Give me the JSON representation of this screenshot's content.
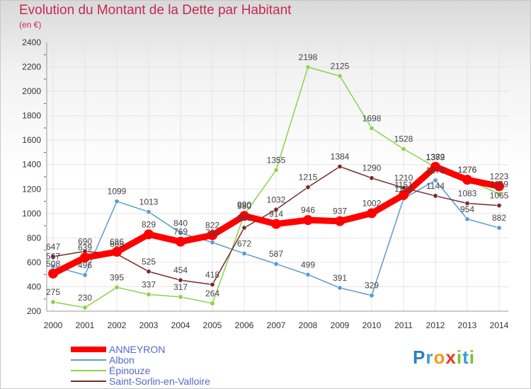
{
  "title": "Evolution du Montant de la Dette par Habitant",
  "subtitle": "(en €)",
  "logo": "Proxiti",
  "chart_data": {
    "type": "line",
    "x": [
      2000,
      2001,
      2002,
      2003,
      2004,
      2005,
      2006,
      2007,
      2008,
      2009,
      2010,
      2011,
      2012,
      2013,
      2014
    ],
    "ylim": [
      200,
      2400
    ],
    "yticks": [
      200,
      400,
      600,
      800,
      1000,
      1200,
      1400,
      1600,
      1800,
      2000,
      2200,
      2400
    ],
    "grid": true,
    "legend_position": "bottom-left",
    "series": [
      {
        "name": "ANNEYRON",
        "color": "#ff0000",
        "values": [
          508,
          639,
          686,
          829,
          769,
          822,
          980,
          914,
          946,
          937,
          1002,
          1151,
          1382,
          1276,
          1223
        ]
      },
      {
        "name": "Albon",
        "color": "#5b9bd5",
        "values": [
          567,
          496,
          1099,
          1013,
          840,
          763,
          672,
          587,
          499,
          391,
          329,
          1121,
          1271,
          954,
          882
        ]
      },
      {
        "name": "Épinouze",
        "color": "#8dd24a",
        "values": [
          275,
          230,
          395,
          337,
          317,
          264,
          990,
          1355,
          2198,
          2125,
          1698,
          1528,
          1379,
          1276,
          1159
        ]
      },
      {
        "name": "Saint-Sorlin-en-Valloire",
        "color": "#7a2a2a",
        "values": [
          647,
          690,
          668,
          525,
          454,
          418,
          883,
          1032,
          1215,
          1384,
          1290,
          1210,
          1144,
          1083,
          1065
        ]
      }
    ]
  }
}
